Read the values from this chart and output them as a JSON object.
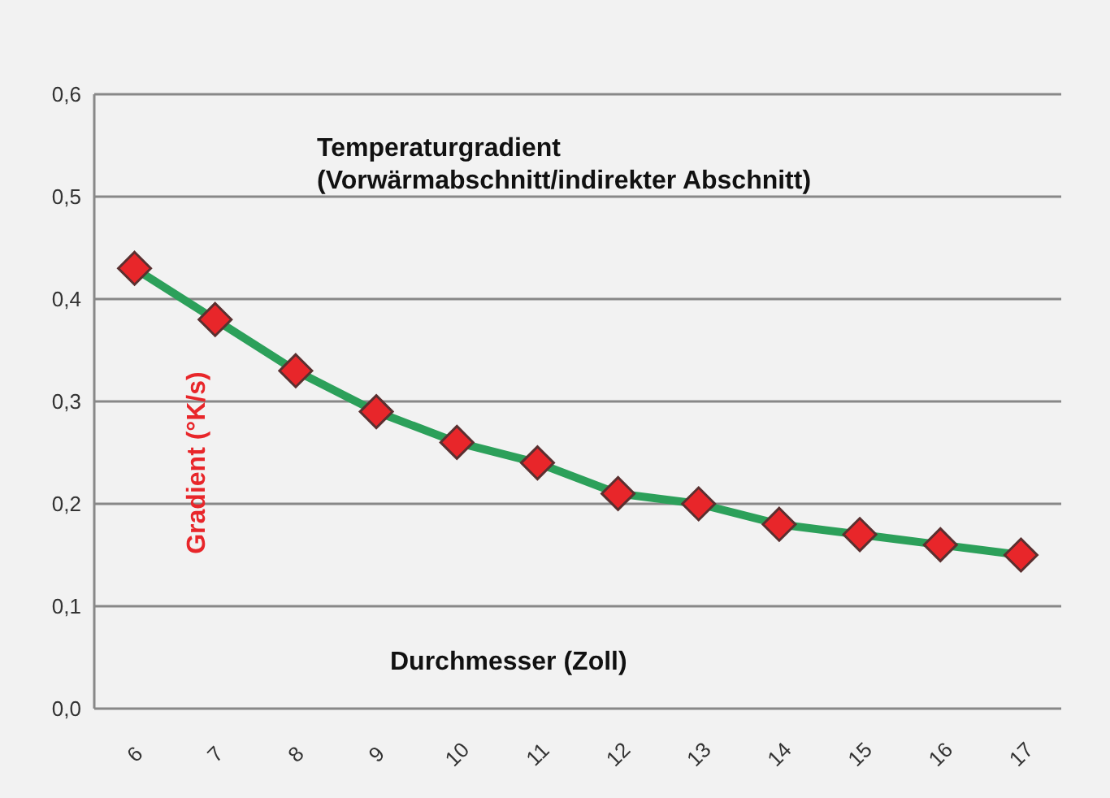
{
  "chart_data": {
    "type": "line",
    "title": "Temperaturgradient\n(Vorwärmabschnitt/indirekter Abschnitt)",
    "xlabel": "Durchmesser (Zoll)",
    "ylabel": "Gradient (°K/s)",
    "categories": [
      "6",
      "7",
      "8",
      "9",
      "10",
      "11",
      "12",
      "13",
      "14",
      "15",
      "16",
      "17"
    ],
    "series": [
      {
        "color": "#2ca05a",
        "values": [
          0.43,
          0.38,
          0.33,
          0.29,
          0.26,
          0.24,
          0.21,
          0.2,
          0.18,
          0.17,
          0.16,
          0.15
        ]
      }
    ],
    "ylim": [
      0,
      0.6
    ],
    "yticks": [
      {
        "value": 0,
        "label": "0,0"
      },
      {
        "value": 0.1,
        "label": "0,1"
      },
      {
        "value": 0.2,
        "label": "0,2"
      },
      {
        "value": 0.3,
        "label": "0,3"
      },
      {
        "value": 0.4,
        "label": "0,4"
      },
      {
        "value": 0.5,
        "label": "0,5"
      },
      {
        "value": 0.6,
        "label": "0,6"
      }
    ],
    "grid": "y",
    "marker": "diamond",
    "line_style": "solid"
  }
}
